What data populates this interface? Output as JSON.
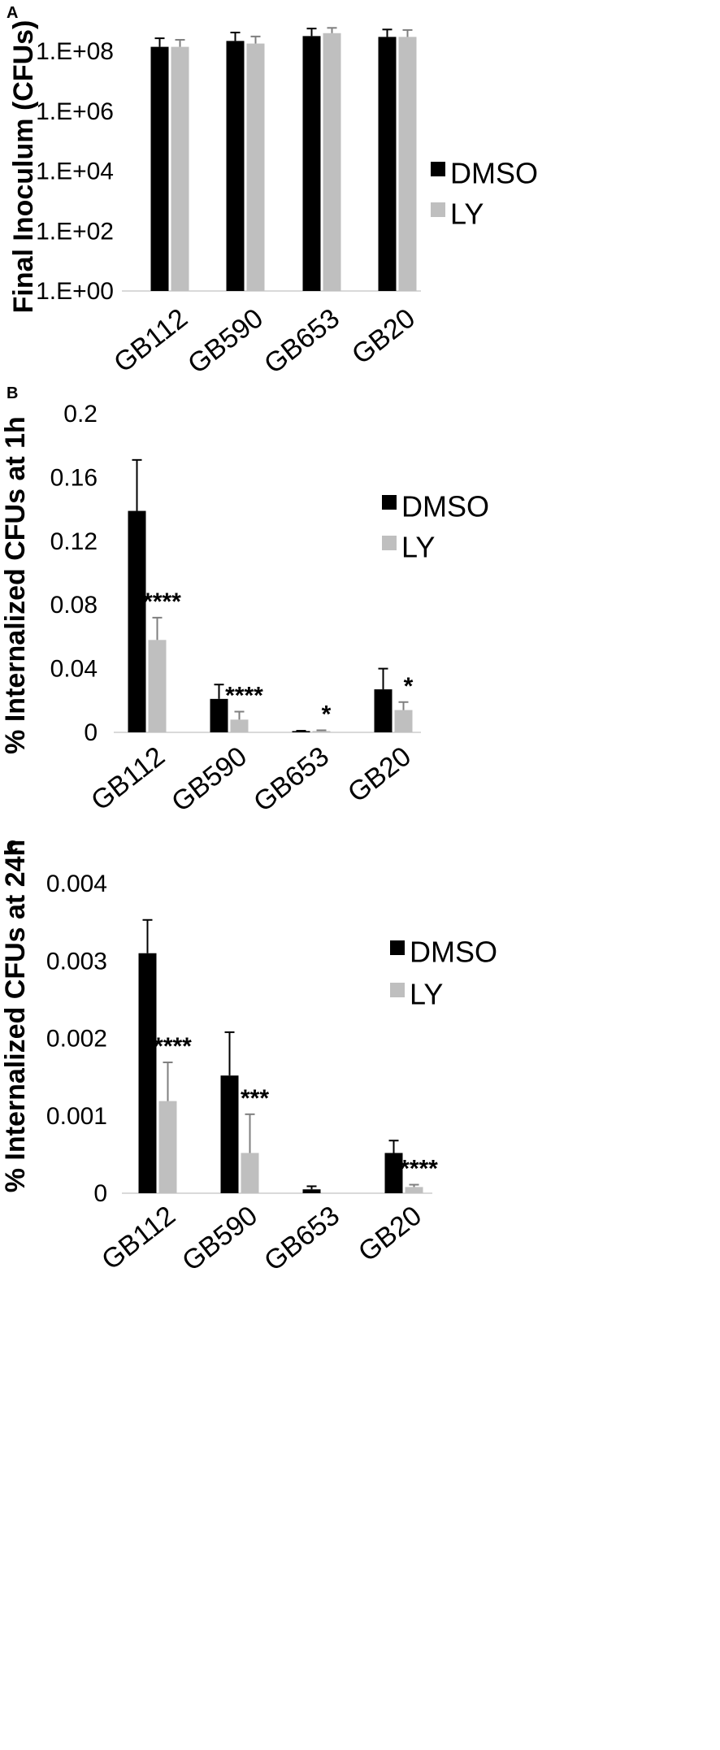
{
  "colors": {
    "DMSO": "#000000",
    "LY": "#bfbfbf",
    "DMSO_err": "#000000",
    "LY_err": "#7f7f7f",
    "axis": "#d9d9d9"
  },
  "chart_data": [
    {
      "panel": "A",
      "type": "bar",
      "ylabel": "Final Inoculum (CFUs)",
      "yscale": "log",
      "ylim": [
        1,
        1000000000
      ],
      "yticks": [
        1,
        100,
        10000,
        1000000,
        100000000
      ],
      "ytick_labels": [
        "1.E+00",
        "1.E+02",
        "1.E+04",
        "1.E+06",
        "1.E+08"
      ],
      "categories": [
        "GB112",
        "GB590",
        "GB653",
        "GB20"
      ],
      "legend": "right",
      "series": [
        {
          "name": "DMSO",
          "values": [
            140000000,
            220000000,
            320000000,
            300000000
          ],
          "errors": [
            130000000,
            200000000,
            250000000,
            230000000
          ]
        },
        {
          "name": "LY",
          "values": [
            140000000,
            180000000,
            400000000,
            300000000
          ],
          "errors": [
            100000000,
            130000000,
            200000000,
            210000000
          ]
        }
      ],
      "annotations": []
    },
    {
      "panel": "B",
      "type": "bar",
      "ylabel": "% Internalized CFUs at 1h",
      "yscale": "linear",
      "ylim": [
        0,
        0.2
      ],
      "yticks": [
        0,
        0.04,
        0.08,
        0.12,
        0.16,
        0.2
      ],
      "ytick_labels": [
        "0",
        "0.04",
        "0.08",
        "0.12",
        "0.16",
        "0.2"
      ],
      "categories": [
        "GB112",
        "GB590",
        "GB653",
        "GB20"
      ],
      "legend": "right",
      "series": [
        {
          "name": "DMSO",
          "values": [
            0.139,
            0.021,
            0.0008,
            0.027
          ],
          "errors": [
            0.032,
            0.009,
            0.0002,
            0.013
          ]
        },
        {
          "name": "LY",
          "values": [
            0.058,
            0.008,
            0.0008,
            0.014
          ],
          "errors": [
            0.014,
            0.005,
            0.0005,
            0.005
          ]
        }
      ],
      "annotations": [
        {
          "category": 0,
          "text": "****"
        },
        {
          "category": 1,
          "text": "****"
        },
        {
          "category": 2,
          "text": "*"
        },
        {
          "category": 3,
          "text": "*"
        }
      ]
    },
    {
      "panel": "C",
      "type": "bar",
      "ylabel": "% Internalized CFUs at 24h",
      "yscale": "linear",
      "ylim": [
        0,
        0.004
      ],
      "yticks": [
        0,
        0.001,
        0.002,
        0.003,
        0.004
      ],
      "ytick_labels": [
        "0",
        "0.001",
        "0.002",
        "0.003",
        "0.004"
      ],
      "categories": [
        "GB112",
        "GB590",
        "GB653",
        "GB20"
      ],
      "legend": "right",
      "series": [
        {
          "name": "DMSO",
          "values": [
            0.0031,
            0.00152,
            5e-05,
            0.00052
          ],
          "errors": [
            0.00043,
            0.00056,
            4e-05,
            0.00016
          ]
        },
        {
          "name": "LY",
          "values": [
            0.00119,
            0.00052,
            0,
            8e-05
          ],
          "errors": [
            0.0005,
            0.0005,
            0,
            3e-05
          ]
        }
      ],
      "annotations": [
        {
          "category": 0,
          "text": "****"
        },
        {
          "category": 1,
          "text": "***"
        },
        {
          "category": 3,
          "text": "****"
        }
      ]
    }
  ]
}
